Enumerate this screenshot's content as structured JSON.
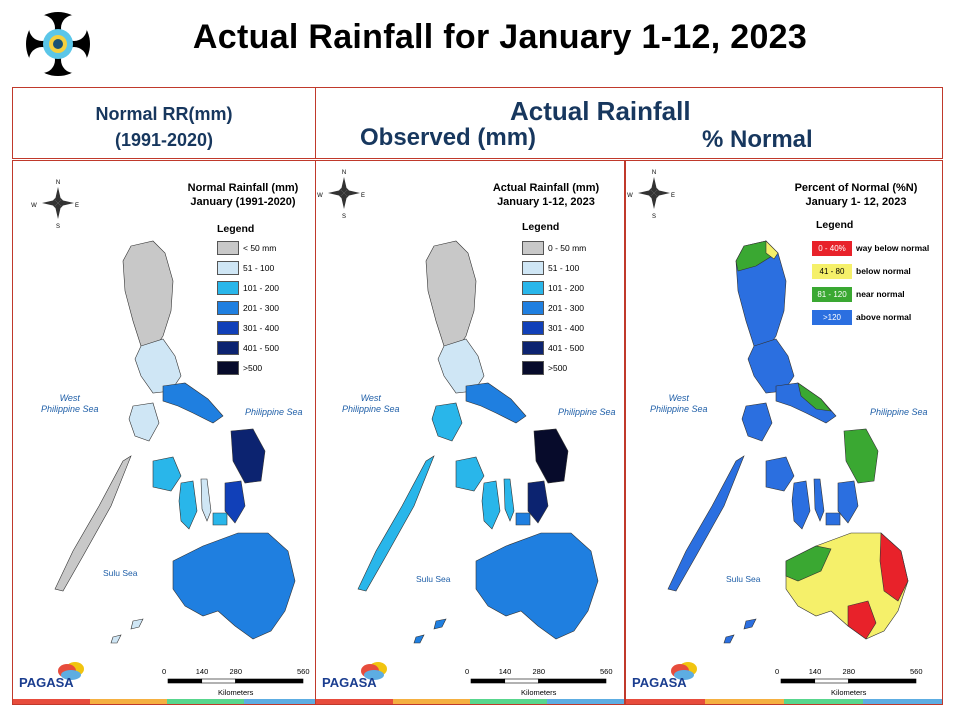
{
  "main_title": "Actual Rainfall for January 1-12, 2023",
  "header": {
    "normal_line1": "Normal RR(mm)",
    "normal_line2": "(1991-2020)",
    "actual": "Actual Rainfall",
    "observed": "Observed (mm)",
    "percent": "% Normal"
  },
  "panels": [
    {
      "title_line1": "Normal Rainfall (mm)",
      "title_line2": "January (1991-2020)",
      "legend_title": "Legend",
      "legend": [
        {
          "label": "< 50 mm",
          "color": "#c8c8c8"
        },
        {
          "label": "51 - 100",
          "color": "#cfe6f5"
        },
        {
          "label": "101 - 200",
          "color": "#29b6ea"
        },
        {
          "label": "201 - 300",
          "color": "#1f7fe0"
        },
        {
          "label": "301 - 400",
          "color": "#1140b8"
        },
        {
          "label": "401 - 500",
          "color": "#0c2370"
        },
        {
          "label": ">500",
          "color": "#070b2b"
        }
      ]
    },
    {
      "title_line1": "Actual Rainfall (mm)",
      "title_line2": "January 1-12, 2023",
      "legend_title": "Legend",
      "legend": [
        {
          "label": "0 - 50 mm",
          "color": "#c8c8c8"
        },
        {
          "label": "51 - 100",
          "color": "#cfe6f5"
        },
        {
          "label": "101 - 200",
          "color": "#29b6ea"
        },
        {
          "label": "201 - 300",
          "color": "#1f7fe0"
        },
        {
          "label": "301 - 400",
          "color": "#1140b8"
        },
        {
          "label": "401 - 500",
          "color": "#0c2370"
        },
        {
          "label": ">500",
          "color": "#070b2b"
        }
      ]
    },
    {
      "title_line1": "Percent of Normal (%N)",
      "title_line2": "January 1- 12, 2023",
      "legend_title": "Legend",
      "legend": [
        {
          "range": "0 - 40%",
          "desc": "way below normal",
          "color": "#e8222a"
        },
        {
          "range": "41 - 80",
          "desc": "below normal",
          "color": "#f5f06a"
        },
        {
          "range": "81 - 120",
          "desc": "near normal",
          "color": "#3aa832"
        },
        {
          "range": ">120",
          "desc": "above normal",
          "color": "#2b6fe0"
        }
      ]
    }
  ],
  "seas": {
    "west_line1": "West",
    "west_line2": "Philippine Sea",
    "philippine_sea": "Philippine Sea",
    "sulu_sea": "Sulu Sea"
  },
  "scale": {
    "ticks": [
      "0",
      "140",
      "280",
      "560"
    ],
    "unit": "Kilometers"
  },
  "compass": {
    "n": "N",
    "s": "S",
    "e": "E",
    "w": "W"
  },
  "brand": {
    "agency": "PAGASA"
  },
  "colors": {
    "title_navy": "#17375e",
    "frame_red": "#c0392b",
    "strip": [
      "#e74c3c",
      "#f5b041",
      "#58d68d",
      "#5dade2"
    ]
  }
}
